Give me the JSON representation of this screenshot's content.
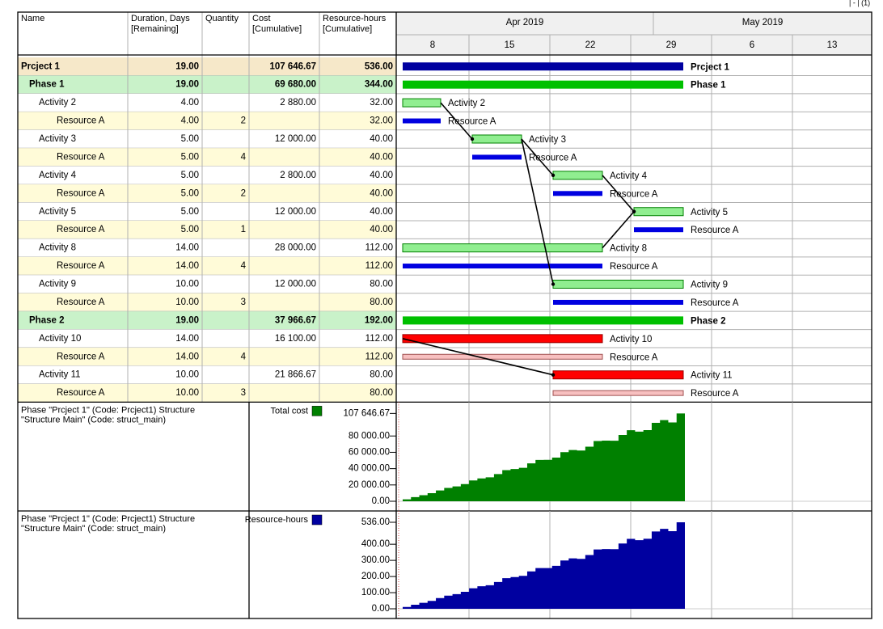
{
  "page_marker": "| - | (1)",
  "table": {
    "headers": [
      [
        "Name"
      ],
      [
        "Duration, Days",
        "[Remaining]"
      ],
      [
        "Quantity"
      ],
      [
        "Cost",
        "[Cumulative]"
      ],
      [
        "Resource-hours",
        "[Cumulative]"
      ]
    ],
    "rows": [
      {
        "name": "Prcject 1",
        "duration": "19.00",
        "quantity": null,
        "cost": "107 646.67",
        "hours": "536.00"
      },
      {
        "name": "Phase 1",
        "duration": "19.00",
        "quantity": null,
        "cost": "69 680.00",
        "hours": "344.00"
      },
      {
        "name": "Activity 2",
        "duration": "4.00",
        "quantity": null,
        "cost": "2 880.00",
        "hours": "32.00"
      },
      {
        "name": "Resource A",
        "duration": "4.00",
        "quantity": "2",
        "cost": null,
        "hours": "32.00"
      },
      {
        "name": "Activity 3",
        "duration": "5.00",
        "quantity": null,
        "cost": "12 000.00",
        "hours": "40.00"
      },
      {
        "name": "Resource A",
        "duration": "5.00",
        "quantity": "4",
        "cost": null,
        "hours": "40.00"
      },
      {
        "name": "Activity 4",
        "duration": "5.00",
        "quantity": null,
        "cost": "2 800.00",
        "hours": "40.00"
      },
      {
        "name": "Resource A",
        "duration": "5.00",
        "quantity": "2",
        "cost": null,
        "hours": "40.00"
      },
      {
        "name": "Activity 5",
        "duration": "5.00",
        "quantity": null,
        "cost": "12 000.00",
        "hours": "40.00"
      },
      {
        "name": "Resource A",
        "duration": "5.00",
        "quantity": "1",
        "cost": null,
        "hours": "40.00"
      },
      {
        "name": "Activity 8",
        "duration": "14.00",
        "quantity": null,
        "cost": "28 000.00",
        "hours": "112.00"
      },
      {
        "name": "Resource A",
        "duration": "14.00",
        "quantity": "4",
        "cost": null,
        "hours": "112.00"
      },
      {
        "name": "Activity 9",
        "duration": "10.00",
        "quantity": null,
        "cost": "12 000.00",
        "hours": "80.00"
      },
      {
        "name": "Resource A",
        "duration": "10.00",
        "quantity": "3",
        "cost": null,
        "hours": "80.00"
      },
      {
        "name": "Phase 2",
        "duration": "19.00",
        "quantity": null,
        "cost": "37 966.67",
        "hours": "192.00"
      },
      {
        "name": "Activity 10",
        "duration": "14.00",
        "quantity": null,
        "cost": "16 100.00",
        "hours": "112.00"
      },
      {
        "name": "Resource A",
        "duration": "14.00",
        "quantity": "4",
        "cost": null,
        "hours": "112.00"
      },
      {
        "name": "Activity 11",
        "duration": "10.00",
        "quantity": null,
        "cost": "21 866.67",
        "hours": "80.00"
      },
      {
        "name": "Resource A",
        "duration": "10.00",
        "quantity": "3",
        "cost": null,
        "hours": "80.00"
      }
    ]
  },
  "timeline": {
    "months": [
      "Apr 2019",
      "May 2019"
    ],
    "weeks": [
      "8",
      "15",
      "22",
      "29",
      "6",
      "13"
    ]
  },
  "panels": [
    {
      "caption": [
        "Phase \"Prcject 1\" (Code: Prcject1) Structure",
        "\"Structure Main\" (Code: struct_main)"
      ],
      "legend": "Total cost",
      "color": "#008000",
      "ylim": [
        0,
        107646.67
      ],
      "yticks": [
        {
          "value": 0,
          "label": "0.00"
        },
        {
          "value": 20000,
          "label": "20 000.00"
        },
        {
          "value": 40000,
          "label": "40 000.00"
        },
        {
          "value": 60000,
          "label": "60 000.00"
        },
        {
          "value": 80000,
          "label": "80 000.00"
        },
        {
          "value": 107646.67,
          "label": "107 646.67"
        }
      ]
    },
    {
      "caption": [
        "Phase \"Prcject 1\" (Code: Prcject1) Structure",
        "\"Structure Main\" (Code: struct_main)"
      ],
      "legend": "Resource-hours",
      "color": "#0000a0",
      "ylim": [
        0,
        536
      ],
      "yticks": [
        {
          "value": 0,
          "label": "0.00"
        },
        {
          "value": 100,
          "label": "100.00"
        },
        {
          "value": 200,
          "label": "200.00"
        },
        {
          "value": 300,
          "label": "300.00"
        },
        {
          "value": 400,
          "label": "400.00"
        },
        {
          "value": 536,
          "label": "536.00"
        }
      ]
    }
  ]
}
